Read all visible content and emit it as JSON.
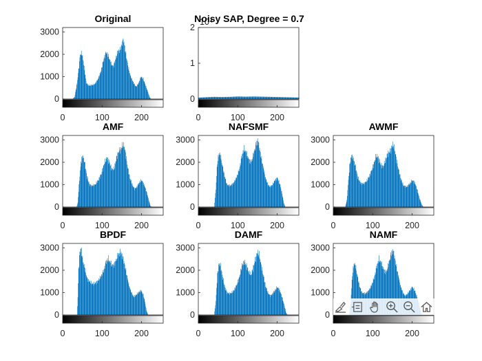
{
  "colors": {
    "bar": "#0072BD",
    "axis": "#262626",
    "background": "#ffffff"
  },
  "toolbar": {
    "icons": [
      "brush-icon",
      "datatip-icon",
      "pan-hand-icon",
      "zoom-in-icon",
      "zoom-out-icon",
      "home-icon"
    ]
  },
  "chart_data": [
    {
      "type": "bar",
      "title": "Original",
      "xlim": [
        0,
        255
      ],
      "ylim": [
        0,
        3200
      ],
      "xticks": [
        0,
        100,
        200
      ],
      "yticks": [
        0,
        1000,
        2000,
        3000
      ],
      "x_tick_labels": [
        "0",
        "100",
        "200"
      ],
      "y_tick_labels": [
        "0",
        "1000",
        "2000",
        "3000"
      ],
      "colorbar": "grayscale",
      "profile": [
        [
          25,
          0
        ],
        [
          30,
          100
        ],
        [
          36,
          700
        ],
        [
          40,
          1300
        ],
        [
          44,
          2000
        ],
        [
          48,
          2050
        ],
        [
          52,
          1700
        ],
        [
          56,
          1150
        ],
        [
          60,
          700
        ],
        [
          66,
          600
        ],
        [
          72,
          620
        ],
        [
          80,
          650
        ],
        [
          88,
          850
        ],
        [
          96,
          1200
        ],
        [
          104,
          1800
        ],
        [
          110,
          2100
        ],
        [
          116,
          1900
        ],
        [
          122,
          1600
        ],
        [
          128,
          1450
        ],
        [
          134,
          1800
        ],
        [
          140,
          2150
        ],
        [
          146,
          2200
        ],
        [
          150,
          2500
        ],
        [
          154,
          2650
        ],
        [
          158,
          2200
        ],
        [
          162,
          1800
        ],
        [
          166,
          1400
        ],
        [
          172,
          1000
        ],
        [
          180,
          700
        ],
        [
          186,
          550
        ],
        [
          192,
          700
        ],
        [
          198,
          1000
        ],
        [
          204,
          900
        ],
        [
          210,
          600
        ],
        [
          216,
          300
        ],
        [
          220,
          80
        ],
        [
          224,
          0
        ]
      ]
    },
    {
      "type": "bar",
      "title": "Noisy SAP, Degree = 0.7",
      "axis_exponent_label": "10⁴",
      "xlim": [
        0,
        255
      ],
      "ylim": [
        0,
        2
      ],
      "xticks": [
        0,
        100,
        200
      ],
      "yticks": [
        0,
        1,
        2
      ],
      "x_tick_labels": [
        "0",
        "100",
        "200"
      ],
      "y_tick_labels": [
        "0",
        "1",
        "2"
      ],
      "colorbar": "grayscale",
      "profile": [
        [
          0,
          0.04
        ],
        [
          20,
          0.05
        ],
        [
          40,
          0.06
        ],
        [
          60,
          0.055
        ],
        [
          80,
          0.06
        ],
        [
          100,
          0.07
        ],
        [
          120,
          0.065
        ],
        [
          140,
          0.07
        ],
        [
          160,
          0.065
        ],
        [
          180,
          0.06
        ],
        [
          200,
          0.055
        ],
        [
          220,
          0.05
        ],
        [
          240,
          0.045
        ],
        [
          255,
          0.04
        ]
      ]
    },
    {
      "type": "bar",
      "title": "",
      "hidden": true
    },
    {
      "type": "bar",
      "title": "AMF",
      "xlim": [
        0,
        255
      ],
      "ylim": [
        0,
        3200
      ],
      "xticks": [
        0,
        100,
        200
      ],
      "yticks": [
        0,
        1000,
        2000,
        3000
      ],
      "x_tick_labels": [
        "0",
        "100",
        "200"
      ],
      "y_tick_labels": [
        "0",
        "1000",
        "2000",
        "3000"
      ],
      "colorbar": "grayscale",
      "profile": [
        [
          35,
          0
        ],
        [
          38,
          200
        ],
        [
          42,
          1200
        ],
        [
          46,
          2000
        ],
        [
          50,
          2300
        ],
        [
          54,
          2100
        ],
        [
          58,
          1700
        ],
        [
          62,
          1300
        ],
        [
          68,
          1000
        ],
        [
          74,
          950
        ],
        [
          82,
          1000
        ],
        [
          90,
          1200
        ],
        [
          98,
          1500
        ],
        [
          106,
          2000
        ],
        [
          112,
          2200
        ],
        [
          118,
          2000
        ],
        [
          124,
          1700
        ],
        [
          130,
          1700
        ],
        [
          136,
          2200
        ],
        [
          142,
          2500
        ],
        [
          148,
          2600
        ],
        [
          152,
          2800
        ],
        [
          156,
          2700
        ],
        [
          160,
          2300
        ],
        [
          164,
          1800
        ],
        [
          170,
          1300
        ],
        [
          176,
          1000
        ],
        [
          182,
          800
        ],
        [
          188,
          900
        ],
        [
          194,
          1100
        ],
        [
          200,
          1200
        ],
        [
          206,
          1000
        ],
        [
          212,
          700
        ],
        [
          218,
          300
        ],
        [
          222,
          50
        ],
        [
          226,
          0
        ]
      ]
    },
    {
      "type": "bar",
      "title": "NAFSMF",
      "xlim": [
        0,
        255
      ],
      "ylim": [
        0,
        3200
      ],
      "xticks": [
        0,
        100,
        200
      ],
      "yticks": [
        0,
        1000,
        2000,
        3000
      ],
      "x_tick_labels": [
        "0",
        "100",
        "200"
      ],
      "y_tick_labels": [
        "0",
        "1000",
        "2000",
        "3000"
      ],
      "colorbar": "grayscale",
      "profile": [
        [
          40,
          0
        ],
        [
          44,
          800
        ],
        [
          48,
          2000
        ],
        [
          52,
          2400
        ],
        [
          56,
          2300
        ],
        [
          60,
          1900
        ],
        [
          66,
          1400
        ],
        [
          72,
          1000
        ],
        [
          80,
          950
        ],
        [
          88,
          1050
        ],
        [
          96,
          1300
        ],
        [
          104,
          1700
        ],
        [
          110,
          2300
        ],
        [
          116,
          2600
        ],
        [
          122,
          2400
        ],
        [
          128,
          2100
        ],
        [
          134,
          2000
        ],
        [
          140,
          2400
        ],
        [
          146,
          2800
        ],
        [
          150,
          3000
        ],
        [
          154,
          2700
        ],
        [
          158,
          2300
        ],
        [
          164,
          1800
        ],
        [
          170,
          1300
        ],
        [
          176,
          1000
        ],
        [
          182,
          900
        ],
        [
          188,
          1000
        ],
        [
          194,
          1200
        ],
        [
          200,
          1300
        ],
        [
          206,
          1050
        ],
        [
          212,
          600
        ],
        [
          216,
          200
        ],
        [
          220,
          0
        ]
      ]
    },
    {
      "type": "bar",
      "title": "AWMF",
      "xlim": [
        0,
        255
      ],
      "ylim": [
        0,
        3200
      ],
      "xticks": [
        0,
        100,
        200
      ],
      "yticks": [
        0,
        1000,
        2000,
        3000
      ],
      "x_tick_labels": [
        "0",
        "100",
        "200"
      ],
      "y_tick_labels": [
        "0",
        "1000",
        "2000",
        "3000"
      ],
      "colorbar": "grayscale",
      "profile": [
        [
          30,
          0
        ],
        [
          34,
          300
        ],
        [
          38,
          1200
        ],
        [
          42,
          2000
        ],
        [
          46,
          2300
        ],
        [
          50,
          2200
        ],
        [
          56,
          1800
        ],
        [
          62,
          1300
        ],
        [
          70,
          1050
        ],
        [
          78,
          1050
        ],
        [
          86,
          1200
        ],
        [
          94,
          1500
        ],
        [
          102,
          1900
        ],
        [
          108,
          2300
        ],
        [
          114,
          2200
        ],
        [
          120,
          1900
        ],
        [
          126,
          1800
        ],
        [
          132,
          2100
        ],
        [
          138,
          2400
        ],
        [
          144,
          2500
        ],
        [
          148,
          2700
        ],
        [
          152,
          2800
        ],
        [
          156,
          2500
        ],
        [
          160,
          2100
        ],
        [
          166,
          1600
        ],
        [
          172,
          1200
        ],
        [
          178,
          950
        ],
        [
          186,
          900
        ],
        [
          194,
          1050
        ],
        [
          200,
          1200
        ],
        [
          206,
          1100
        ],
        [
          212,
          800
        ],
        [
          218,
          400
        ],
        [
          224,
          100
        ],
        [
          228,
          0
        ]
      ]
    },
    {
      "type": "bar",
      "title": "BPDF",
      "xlim": [
        0,
        255
      ],
      "ylim": [
        0,
        3200
      ],
      "xticks": [
        0,
        100,
        200
      ],
      "yticks": [
        0,
        1000,
        2000,
        3000
      ],
      "x_tick_labels": [
        "0",
        "100",
        "200"
      ],
      "y_tick_labels": [
        "0",
        "1000",
        "2000",
        "3000"
      ],
      "colorbar": "grayscale",
      "profile": [
        [
          36,
          0
        ],
        [
          38,
          800
        ],
        [
          40,
          2000
        ],
        [
          42,
          2600
        ],
        [
          44,
          2900
        ],
        [
          46,
          3000
        ],
        [
          50,
          2500
        ],
        [
          54,
          2200
        ],
        [
          58,
          1900
        ],
        [
          62,
          1600
        ],
        [
          68,
          1500
        ],
        [
          74,
          1400
        ],
        [
          80,
          1400
        ],
        [
          88,
          1500
        ],
        [
          96,
          1700
        ],
        [
          104,
          2000
        ],
        [
          110,
          2400
        ],
        [
          116,
          2500
        ],
        [
          122,
          2300
        ],
        [
          128,
          2200
        ],
        [
          134,
          2400
        ],
        [
          140,
          2700
        ],
        [
          146,
          2800
        ],
        [
          150,
          2700
        ],
        [
          156,
          2300
        ],
        [
          162,
          1800
        ],
        [
          168,
          1300
        ],
        [
          174,
          1000
        ],
        [
          180,
          800
        ],
        [
          186,
          900
        ],
        [
          192,
          1000
        ],
        [
          198,
          1100
        ],
        [
          204,
          900
        ],
        [
          208,
          600
        ],
        [
          212,
          200
        ],
        [
          216,
          0
        ]
      ]
    },
    {
      "type": "bar",
      "title": "DAMF",
      "xlim": [
        0,
        255
      ],
      "ylim": [
        0,
        3200
      ],
      "xticks": [
        0,
        100,
        200
      ],
      "yticks": [
        0,
        1000,
        2000,
        3000
      ],
      "x_tick_labels": [
        "0",
        "100",
        "200"
      ],
      "y_tick_labels": [
        "0",
        "1000",
        "2000",
        "3000"
      ],
      "colorbar": "grayscale",
      "profile": [
        [
          40,
          0
        ],
        [
          44,
          600
        ],
        [
          48,
          1800
        ],
        [
          52,
          2300
        ],
        [
          56,
          2200
        ],
        [
          60,
          1800
        ],
        [
          66,
          1300
        ],
        [
          72,
          1000
        ],
        [
          80,
          950
        ],
        [
          88,
          1050
        ],
        [
          96,
          1300
        ],
        [
          104,
          1700
        ],
        [
          110,
          2200
        ],
        [
          116,
          2400
        ],
        [
          122,
          2200
        ],
        [
          128,
          1900
        ],
        [
          134,
          1800
        ],
        [
          140,
          2200
        ],
        [
          146,
          2600
        ],
        [
          150,
          2800
        ],
        [
          154,
          2700
        ],
        [
          158,
          2300
        ],
        [
          164,
          1800
        ],
        [
          170,
          1300
        ],
        [
          176,
          1000
        ],
        [
          182,
          850
        ],
        [
          188,
          950
        ],
        [
          194,
          1100
        ],
        [
          200,
          1250
        ],
        [
          206,
          1100
        ],
        [
          212,
          800
        ],
        [
          218,
          400
        ],
        [
          222,
          100
        ],
        [
          226,
          0
        ]
      ]
    },
    {
      "type": "bar",
      "title": "NAMF",
      "xlim": [
        0,
        255
      ],
      "ylim": [
        0,
        3200
      ],
      "xticks": [
        0,
        100,
        200
      ],
      "yticks": [
        0,
        1000,
        2000,
        3000
      ],
      "x_tick_labels": [
        "0",
        "100",
        "200"
      ],
      "y_tick_labels": [
        "0",
        "1000",
        "2000",
        "3000"
      ],
      "colorbar": "grayscale",
      "profile": [
        [
          40,
          0
        ],
        [
          44,
          600
        ],
        [
          48,
          1800
        ],
        [
          52,
          2300
        ],
        [
          56,
          2200
        ],
        [
          60,
          1800
        ],
        [
          66,
          1300
        ],
        [
          72,
          1000
        ],
        [
          80,
          950
        ],
        [
          88,
          1050
        ],
        [
          96,
          1300
        ],
        [
          104,
          1700
        ],
        [
          110,
          2200
        ],
        [
          116,
          2500
        ],
        [
          122,
          2300
        ],
        [
          128,
          2000
        ],
        [
          134,
          1900
        ],
        [
          140,
          2300
        ],
        [
          146,
          2700
        ],
        [
          150,
          2900
        ],
        [
          154,
          2700
        ],
        [
          158,
          2300
        ],
        [
          164,
          1800
        ],
        [
          170,
          1300
        ],
        [
          176,
          1000
        ],
        [
          182,
          850
        ],
        [
          188,
          950
        ],
        [
          194,
          1100
        ],
        [
          200,
          1250
        ],
        [
          206,
          1100
        ],
        [
          212,
          800
        ],
        [
          218,
          400
        ],
        [
          222,
          100
        ],
        [
          226,
          0
        ]
      ]
    }
  ]
}
